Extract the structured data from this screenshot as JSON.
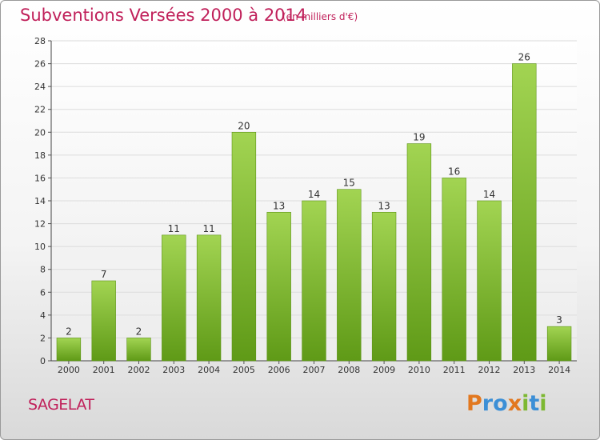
{
  "chart_data": {
    "type": "bar",
    "title": "Subventions Versées 2000 à 2014",
    "subtitle": "(en milliers d'€)",
    "categories": [
      "2000",
      "2001",
      "2002",
      "2003",
      "2004",
      "2005",
      "2006",
      "2007",
      "2008",
      "2009",
      "2010",
      "2011",
      "2012",
      "2013",
      "2014"
    ],
    "values": [
      2,
      7,
      2,
      11,
      11,
      20,
      13,
      14,
      15,
      13,
      19,
      16,
      14,
      26,
      3
    ],
    "ylim": [
      0,
      28
    ],
    "yticks": [
      0,
      2,
      4,
      6,
      8,
      10,
      12,
      14,
      16,
      18,
      20,
      22,
      24,
      26,
      28
    ],
    "grid": true,
    "bar_color": "#7db832"
  },
  "commune": "SAGELAT",
  "logo": {
    "letters": [
      "P",
      "r",
      "o",
      "x",
      "i",
      "t",
      "i"
    ],
    "colors": [
      "#e2781f",
      "#3c8fd6",
      "#3c8fd6",
      "#e2781f",
      "#7db832",
      "#3c8fd6",
      "#7db832"
    ]
  }
}
